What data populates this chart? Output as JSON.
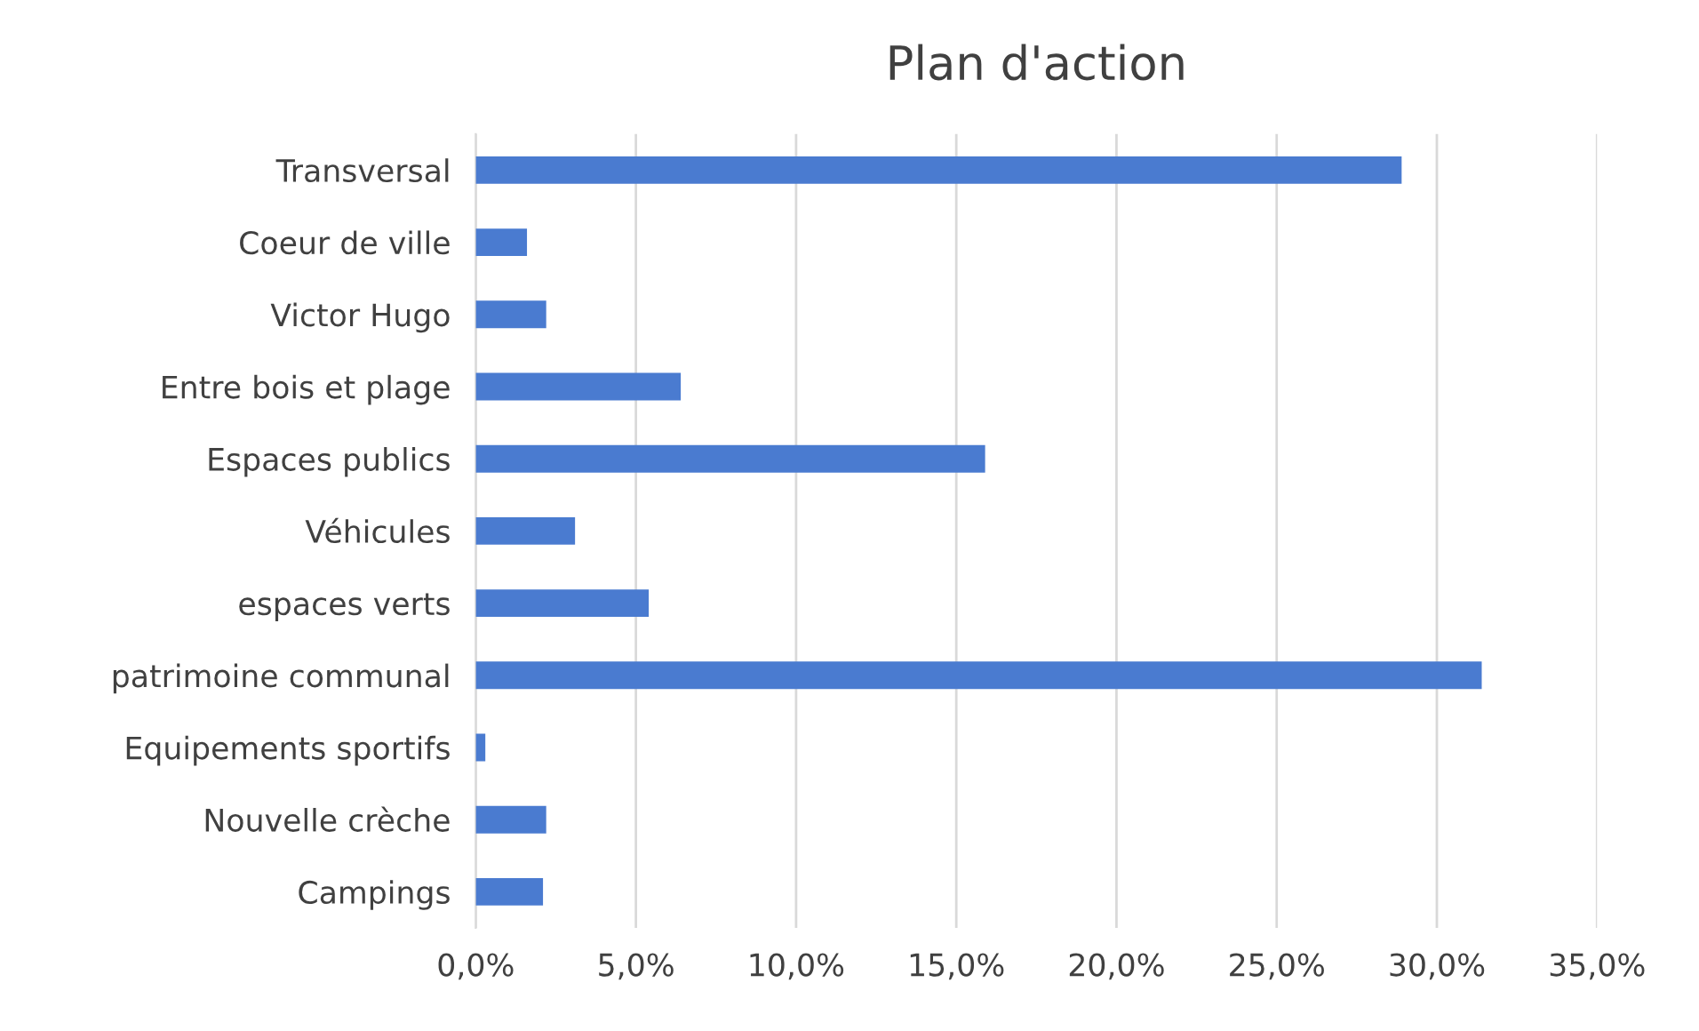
{
  "chart_data": {
    "type": "bar",
    "orientation": "horizontal",
    "title": "Plan d'action",
    "categories": [
      "Transversal",
      "Coeur de ville",
      "Victor Hugo",
      "Entre bois et plage",
      "Espaces publics",
      "Véhicules",
      "espaces verts",
      "patrimoine communal",
      "Equipements sportifs",
      "Nouvelle crèche",
      "Campings"
    ],
    "values": [
      28.9,
      1.6,
      2.2,
      6.4,
      15.9,
      3.1,
      5.4,
      31.4,
      0.3,
      2.2,
      2.1
    ],
    "color": "#4a7bd0",
    "xlim": [
      0,
      35
    ],
    "xticks": [
      {
        "value": 0,
        "label": "0,0%"
      },
      {
        "value": 5,
        "label": "5,0%"
      },
      {
        "value": 10,
        "label": "10,0%"
      },
      {
        "value": 15,
        "label": "15,0%"
      },
      {
        "value": 20,
        "label": "20,0%"
      },
      {
        "value": 25,
        "label": "25,0%"
      },
      {
        "value": 30,
        "label": "30,0%"
      },
      {
        "value": 35,
        "label": "35,0%"
      }
    ],
    "grid": "x"
  }
}
